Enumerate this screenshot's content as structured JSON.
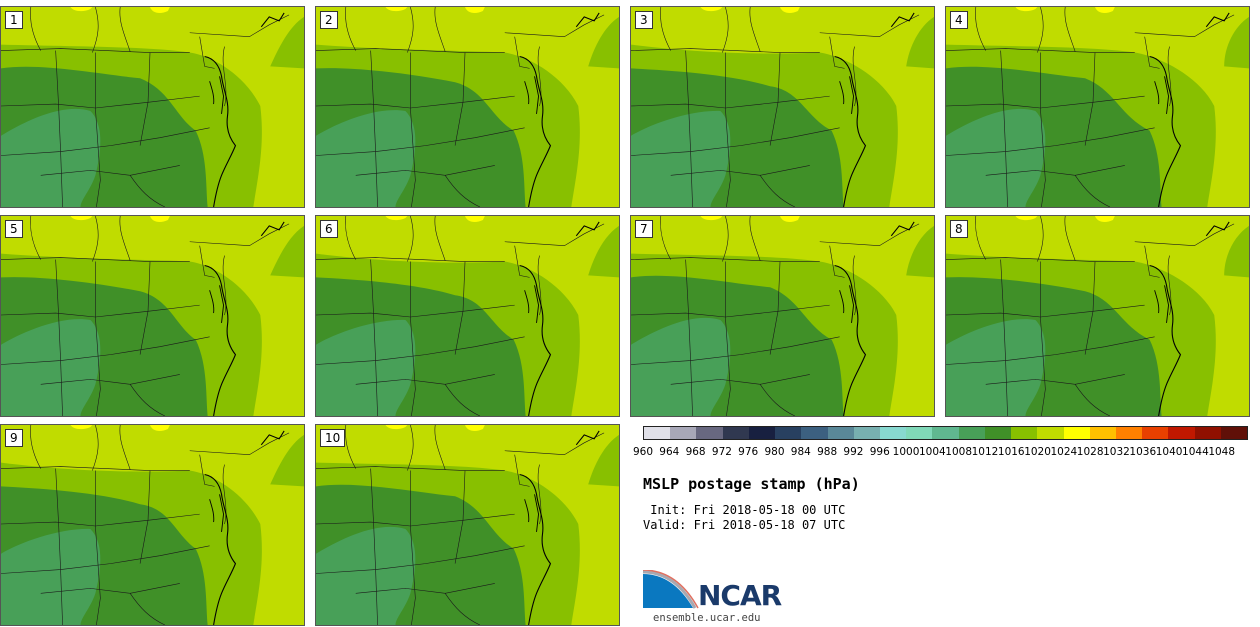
{
  "panels": [
    {
      "label": "1"
    },
    {
      "label": "2"
    },
    {
      "label": "3"
    },
    {
      "label": "4"
    },
    {
      "label": "5"
    },
    {
      "label": "6"
    },
    {
      "label": "7"
    },
    {
      "label": "8"
    },
    {
      "label": "9"
    },
    {
      "label": "10"
    }
  ],
  "colorbar": {
    "colors": [
      "#e0e0e8",
      "#a8a8b8",
      "#686880",
      "#303850",
      "#182040",
      "#284060",
      "#3c6080",
      "#5a8898",
      "#78b0b0",
      "#88d8d0",
      "#80d8b8",
      "#60b890",
      "#48a058",
      "#409028",
      "#88c000",
      "#c0dc00",
      "#ffff00",
      "#ffc000",
      "#ff8000",
      "#e84000",
      "#c01800",
      "#901000",
      "#601008"
    ],
    "ticks": [
      "960",
      "964",
      "968",
      "972",
      "976",
      "980",
      "984",
      "988",
      "992",
      "996",
      "1000",
      "1004",
      "1008",
      "1012",
      "1016",
      "1020",
      "1024",
      "1028",
      "1032",
      "1036",
      "1040",
      "1044",
      "1048"
    ]
  },
  "title": "MSLP postage stamp (hPa)",
  "init": " Init: Fri 2018-05-18 00 UTC",
  "valid": "Valid: Fri 2018-05-18 07 UTC",
  "logo": {
    "text": "NCAR",
    "site": "ensemble.ucar.edu"
  },
  "map_colors": {
    "c1024": "#ffff00",
    "c1020": "#c0dc00",
    "c1016": "#88c000",
    "c1012": "#409028",
    "c1008": "#48a058"
  }
}
